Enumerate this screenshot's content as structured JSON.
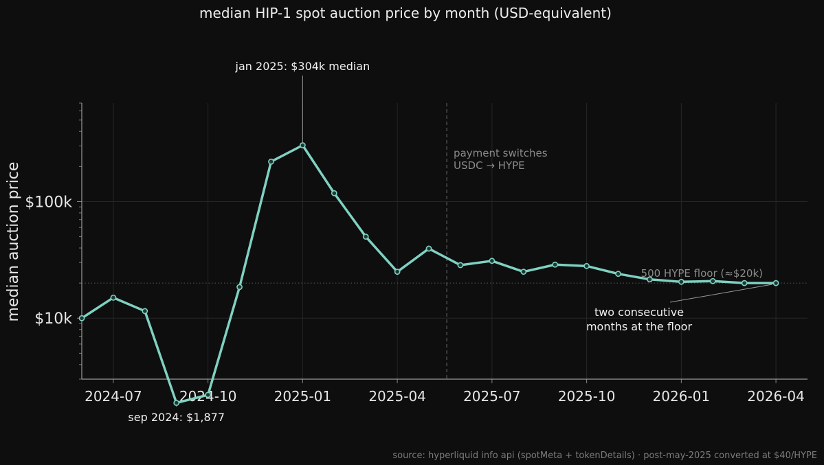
{
  "chart_data": {
    "type": "line",
    "title": "median HIP-1 spot auction price by month (USD-equivalent)",
    "ylabel": "median auction price",
    "xlabel": "",
    "yscale": "log",
    "ylim": [
      3000,
      700000
    ],
    "xlim": [
      "2024-06",
      "2026-05"
    ],
    "x_ticks": [
      "2024-07",
      "2024-10",
      "2025-01",
      "2025-04",
      "2025-07",
      "2025-10",
      "2026-01",
      "2026-04"
    ],
    "y_ticks": [
      {
        "value": 10000,
        "label": "$10k"
      },
      {
        "value": 100000,
        "label": "$100k"
      }
    ],
    "grid": true,
    "line_color": "#7fd1c1",
    "series": [
      {
        "x": [
          "2024-06",
          "2024-07",
          "2024-08",
          "2024-09",
          "2024-10",
          "2024-11",
          "2024-12",
          "2025-01",
          "2025-02",
          "2025-03",
          "2025-04",
          "2025-05",
          "2025-06",
          "2025-07",
          "2025-08",
          "2025-09",
          "2025-10",
          "2025-11",
          "2025-12",
          "2026-01",
          "2026-02",
          "2026-03",
          "2026-04"
        ],
        "values": [
          10000,
          15000,
          11500,
          1877,
          2200,
          18500,
          220000,
          304000,
          118000,
          50000,
          25000,
          39500,
          28500,
          31000,
          25000,
          28800,
          28000,
          24000,
          21500,
          20500,
          20800,
          20000,
          20000
        ]
      }
    ],
    "reference_lines": [
      {
        "axis": "y",
        "value": 20000,
        "label": "500 HYPE floor (≈$20k)"
      },
      {
        "axis": "x",
        "value": "2025-05-18",
        "label_lines": [
          "payment switches",
          "USDC → HYPE"
        ]
      }
    ],
    "annotations": [
      {
        "text": "jan 2025: $304k median",
        "x": "2025-01",
        "y": 304000
      },
      {
        "text": "sep 2024: $1,877",
        "x": "2024-09",
        "y": 1877
      },
      {
        "text_lines": [
          "two consecutive",
          "months at the floor"
        ],
        "x": "2026-04",
        "y": 20000
      }
    ]
  },
  "source_note": "source: hyperliquid info api (spotMeta + tokenDetails) · post-may-2025 converted at $40/HYPE"
}
